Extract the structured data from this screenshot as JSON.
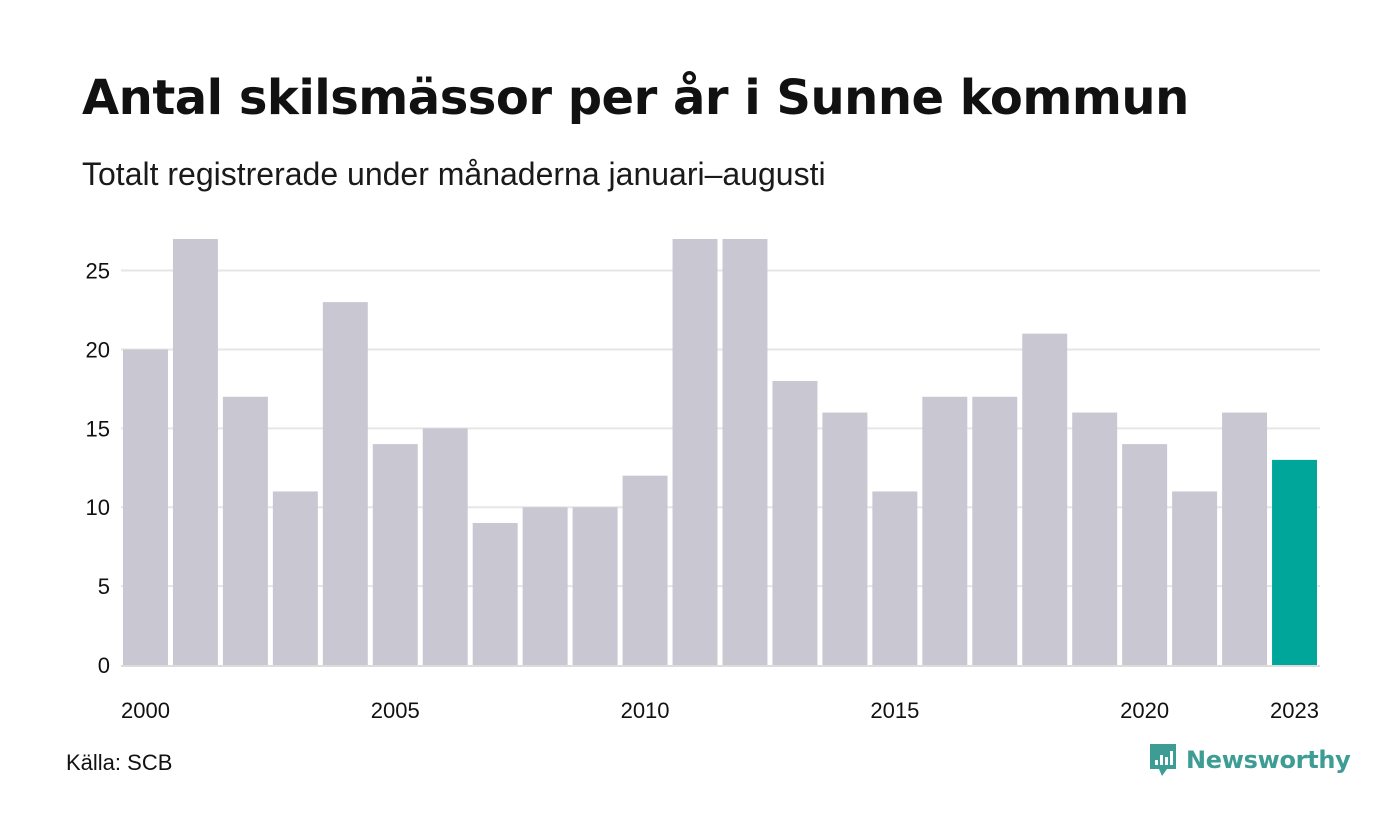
{
  "title": "Antal skilsmässor per år i Sunne kommun",
  "subtitle": "Totalt registrerade under månaderna januari–augusti",
  "source": "Källa: SCB",
  "brand": {
    "name": "Newsworthy",
    "icon": "newsworthy-logo-icon",
    "color": "#3d9c93"
  },
  "chart_data": {
    "type": "bar",
    "categories": [
      2000,
      2001,
      2002,
      2003,
      2004,
      2005,
      2006,
      2007,
      2008,
      2009,
      2010,
      2011,
      2012,
      2013,
      2014,
      2015,
      2016,
      2017,
      2018,
      2019,
      2020,
      2021,
      2022,
      2023
    ],
    "values": [
      20,
      27,
      17,
      11,
      23,
      14,
      15,
      9,
      10,
      10,
      12,
      27,
      27,
      18,
      16,
      11,
      17,
      17,
      21,
      16,
      14,
      11,
      16,
      13
    ],
    "x_tick_labels": [
      "2000",
      "2005",
      "2010",
      "2015",
      "2020",
      "2023"
    ],
    "y_ticks": [
      0,
      5,
      10,
      15,
      20,
      25
    ],
    "ylim": [
      0,
      27
    ],
    "grid": true,
    "legend": "none",
    "bar_color": "#c8c7d2",
    "highlight_color": "#00a69a",
    "highlight_category": 2023
  }
}
